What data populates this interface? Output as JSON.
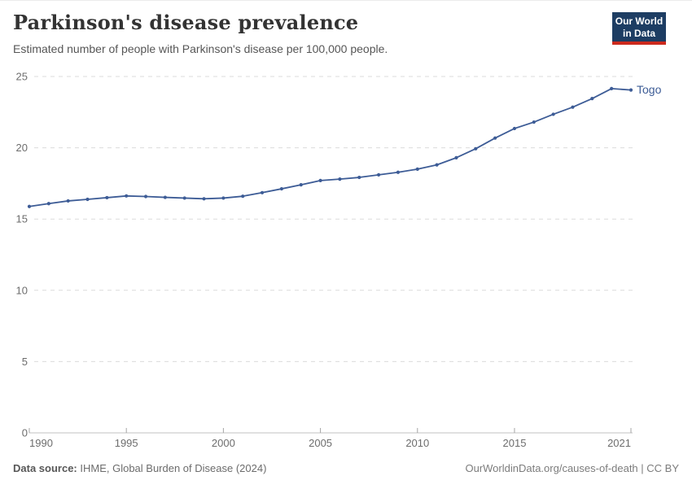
{
  "header": {
    "title": "Parkinson's disease prevalence",
    "subtitle": "Estimated number of people with Parkinson's disease per 100,000 people."
  },
  "logo": {
    "line1": "Our World",
    "line2": "in Data",
    "bg_color": "#1d3d63",
    "accent_color": "#cc2a1d"
  },
  "chart_data": {
    "type": "line",
    "title": "Parkinson's disease prevalence",
    "subtitle": "Estimated number of people with Parkinson's disease per 100,000 people.",
    "x": [
      1990,
      1991,
      1992,
      1993,
      1994,
      1995,
      1996,
      1997,
      1998,
      1999,
      2000,
      2001,
      2002,
      2003,
      2004,
      2005,
      2006,
      2007,
      2008,
      2009,
      2010,
      2011,
      2012,
      2013,
      2014,
      2015,
      2016,
      2017,
      2018,
      2019,
      2020,
      2021
    ],
    "series": [
      {
        "name": "Togo",
        "color": "#3d5c96",
        "values": [
          15.88,
          16.08,
          16.27,
          16.38,
          16.5,
          16.62,
          16.58,
          16.52,
          16.47,
          16.42,
          16.47,
          16.6,
          16.85,
          17.12,
          17.4,
          17.7,
          17.8,
          17.92,
          18.1,
          18.28,
          18.5,
          18.8,
          19.3,
          19.93,
          20.68,
          21.35,
          21.8,
          22.35,
          22.85,
          23.45,
          24.15,
          24.05
        ]
      }
    ],
    "xlim": [
      1990,
      2021
    ],
    "ylim": [
      0,
      25
    ],
    "xticks": [
      1990,
      1995,
      2000,
      2005,
      2010,
      2015,
      2021
    ],
    "yticks": [
      0,
      5,
      10,
      15,
      20,
      25
    ],
    "xlabel": "",
    "ylabel": "",
    "grid": "horizontal-dashed",
    "legend": "end-of-line-label"
  },
  "colors": {
    "line": "#3d5c96",
    "grid": "#dbdbdb",
    "axis": "#c2c2c2",
    "tick": "#a5a5a5",
    "tick_label": "#6d6d6d"
  },
  "footer": {
    "source_label": "Data source:",
    "source_value": " IHME, Global Burden of Disease (2024)",
    "attribution": "OurWorldinData.org/causes-of-death | CC BY"
  }
}
